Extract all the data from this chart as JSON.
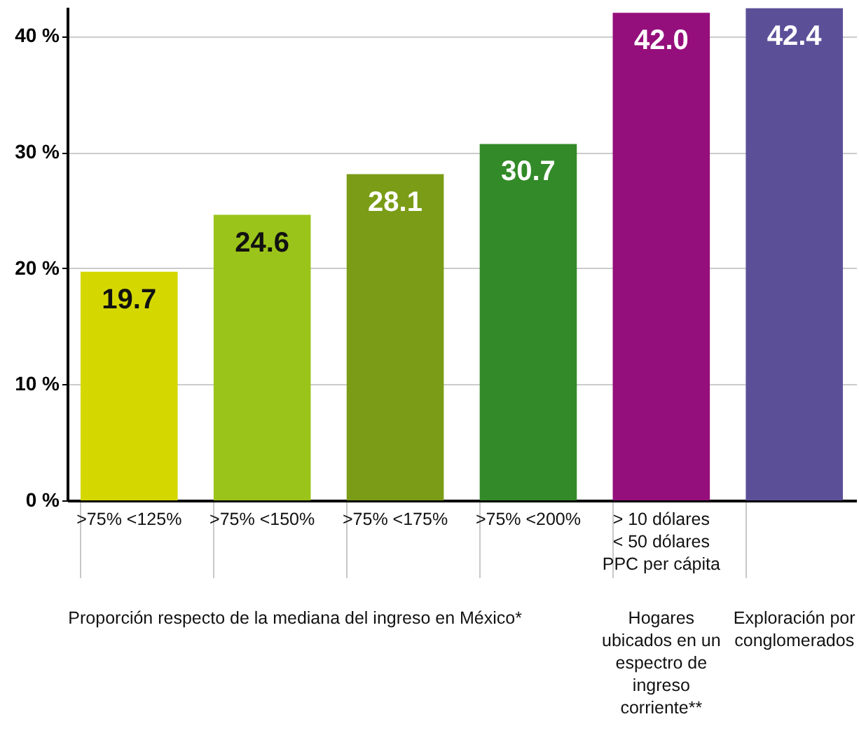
{
  "chart_data": {
    "type": "bar",
    "categories": [
      ">75% <125%",
      ">75% <150%",
      ">75% <175%",
      ">75% <200%",
      "> 10 dólares < 50 dólares PPC per cápita",
      null
    ],
    "values": [
      19.7,
      24.6,
      28.1,
      30.7,
      42.0,
      42.4
    ],
    "colors": [
      "#d4d800",
      "#9bc41a",
      "#7b9c16",
      "#338a28",
      "#950f7c",
      "#5b5098"
    ],
    "ylim": [
      0,
      42.5
    ],
    "yticks": [
      {
        "value": 0,
        "label": "0 %"
      },
      {
        "value": 10,
        "label": "10 %"
      },
      {
        "value": 20,
        "label": "20 %"
      },
      {
        "value": 30,
        "label": "30 %"
      },
      {
        "value": 40,
        "label": "40 %"
      }
    ],
    "grid": "y",
    "value_labels": [
      "19.7",
      "24.6",
      "28.1",
      "30.7",
      "42.0",
      "42.4"
    ],
    "annotations": [
      "Proporción respecto de la mediana del ingreso en México*",
      "Hogares ubicados en un espectro de ingreso corriente**",
      "Exploración por conglomerados"
    ]
  }
}
